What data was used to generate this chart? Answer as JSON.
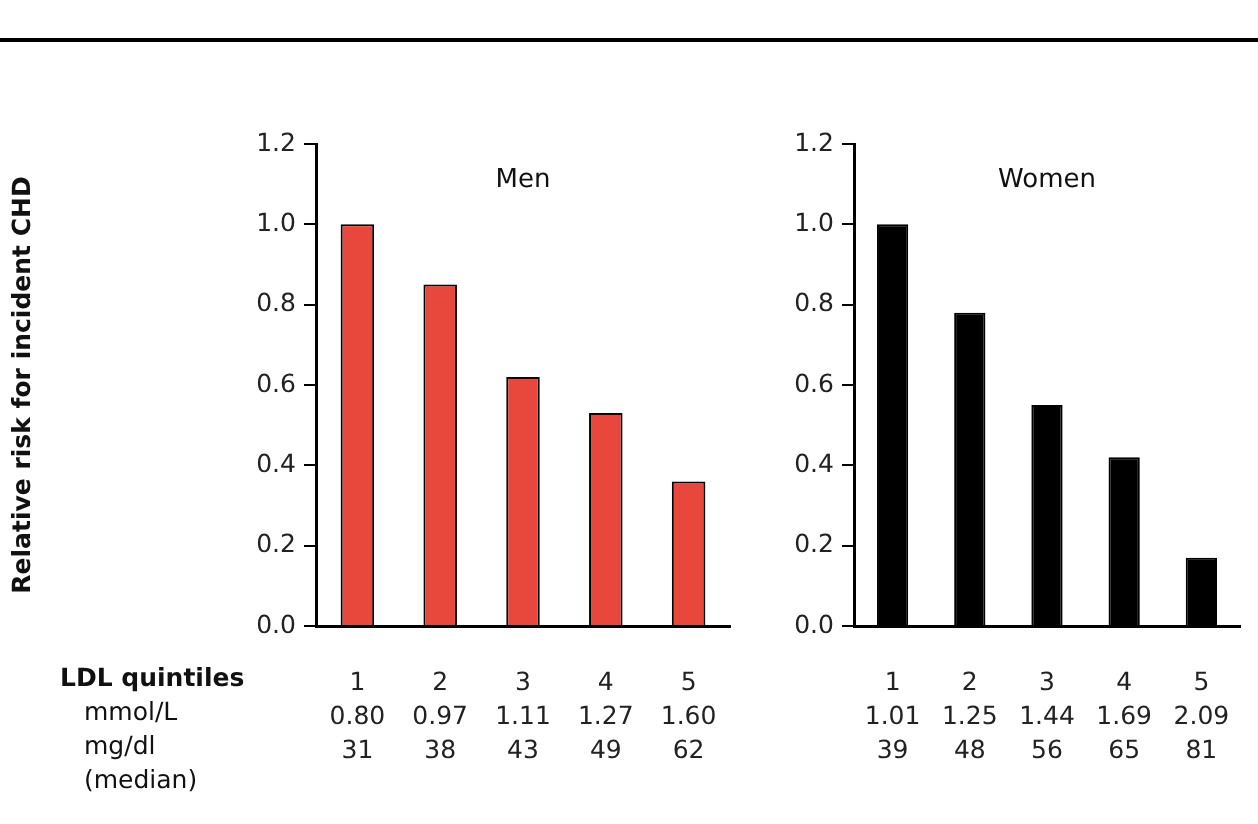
{
  "chart_data": [
    {
      "type": "bar",
      "title": "Men",
      "ylabel": "Relative risk for incident CHD",
      "categories": [
        "1\n0.80\n31",
        "2\n0.97\n38",
        "3\n1.11\n43",
        "4\n1.27\n49",
        "5\n1.60\n62"
      ],
      "values": [
        1.0,
        0.85,
        0.62,
        0.53,
        0.36
      ],
      "color": "#e8473c",
      "ylim": [
        0,
        1.2
      ],
      "yticks": [
        {
          "value": 0,
          "label": "0.0"
        },
        {
          "value": 0.2,
          "label": "0.2"
        },
        {
          "value": 0.4,
          "label": "0.4"
        },
        {
          "value": 0.6,
          "label": "0.6"
        },
        {
          "value": 0.8,
          "label": "0.8"
        },
        {
          "value": 1,
          "label": "1.0"
        },
        {
          "value": 1.2,
          "label": "1.2"
        }
      ],
      "grid": false,
      "legend": false,
      "annotations": [
        "LDL quintiles",
        "mmol/L",
        "mg/dl",
        "(median)"
      ]
    },
    {
      "type": "bar",
      "title": "Women",
      "categories": [
        "1\n1.01\n39",
        "2\n1.25\n48",
        "3\n1.44\n56",
        "4\n1.69\n65",
        "5\n2.09\n81"
      ],
      "values": [
        1.0,
        0.78,
        0.55,
        0.42,
        0.17
      ],
      "color": "#000000",
      "ylim": [
        0,
        1.2
      ],
      "yticks": [
        {
          "value": 0,
          "label": "0.0"
        },
        {
          "value": 0.2,
          "label": "0.2"
        },
        {
          "value": 0.4,
          "label": "0.4"
        },
        {
          "value": 0.6,
          "label": "0.6"
        },
        {
          "value": 0.8,
          "label": "0.8"
        },
        {
          "value": 1,
          "label": "1.0"
        },
        {
          "value": 1.2,
          "label": "1.2"
        }
      ],
      "grid": false,
      "legend": false
    }
  ]
}
